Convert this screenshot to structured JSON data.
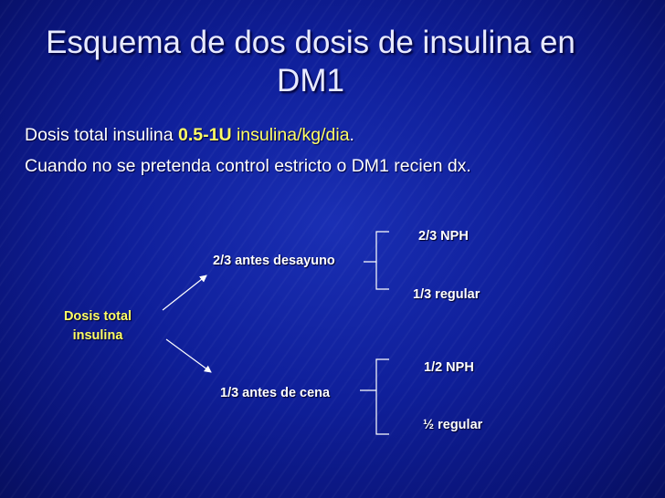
{
  "slide": {
    "title": "Esquema de dos dosis de insulina en DM1",
    "line1": {
      "prefix": "Dosis total insulina ",
      "dose": "0.5-1U",
      "space": " ",
      "unit": "insulina/kg/dia",
      "suffix": "."
    },
    "line2": "Cuando no se pretenda control estricto o DM1 recien dx."
  },
  "diagram": {
    "root": "Dosis total insulina",
    "branch_morning": {
      "label": "2/3 antes desayuno",
      "nph": "2/3 NPH",
      "regular": "1/3 regular"
    },
    "branch_evening": {
      "label": "1/3 antes de cena",
      "nph": "1/2 NPH",
      "regular": "½ regular"
    }
  },
  "colors": {
    "background": "#0d1a8c",
    "highlight": "#ffff66",
    "text": "#ffffff"
  }
}
